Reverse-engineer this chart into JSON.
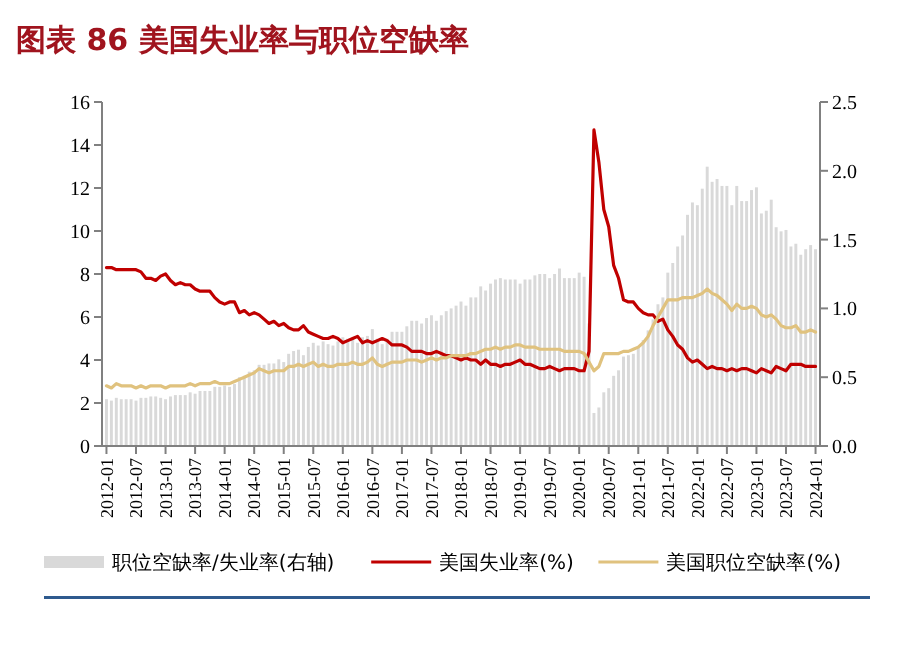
{
  "chart_data": {
    "type": "bar",
    "title": "图表 86  美国失业率与职位空缺率",
    "categories": [
      "2012-01",
      null,
      null,
      null,
      null,
      null,
      "2012-07",
      null,
      null,
      null,
      null,
      null,
      "2013-01",
      null,
      null,
      null,
      null,
      null,
      "2013-07",
      null,
      null,
      null,
      null,
      null,
      "2014-01",
      null,
      null,
      null,
      null,
      null,
      "2014-07",
      null,
      null,
      null,
      null,
      null,
      "2015-01",
      null,
      null,
      null,
      null,
      null,
      "2015-07",
      null,
      null,
      null,
      null,
      null,
      "2016-01",
      null,
      null,
      null,
      null,
      null,
      "2016-07",
      null,
      null,
      null,
      null,
      null,
      "2017-01",
      null,
      null,
      null,
      null,
      null,
      "2017-07",
      null,
      null,
      null,
      null,
      null,
      "2018-01",
      null,
      null,
      null,
      null,
      null,
      "2018-07",
      null,
      null,
      null,
      null,
      null,
      "2019-01",
      null,
      null,
      null,
      null,
      null,
      "2019-07",
      null,
      null,
      null,
      null,
      null,
      "2020-01",
      null,
      null,
      null,
      null,
      null,
      "2020-07",
      null,
      null,
      null,
      null,
      null,
      "2021-01",
      null,
      null,
      null,
      null,
      null,
      "2021-07",
      null,
      null,
      null,
      null,
      null,
      "2022-01",
      null,
      null,
      null,
      null,
      null,
      "2022-07",
      null,
      null,
      null,
      null,
      null,
      "2023-01",
      null,
      null,
      null,
      null,
      null,
      "2023-07",
      null,
      null,
      null,
      null,
      null,
      "2024-01"
    ],
    "series": [
      {
        "name": "职位空缺率/失业率(右轴)",
        "axis": "y2",
        "color": "#d9d9d9",
        "values": [
          0.34,
          0.33,
          0.35,
          0.34,
          0.34,
          0.34,
          0.33,
          0.35,
          0.35,
          0.36,
          0.36,
          0.35,
          0.34,
          0.36,
          0.37,
          0.37,
          0.37,
          0.39,
          0.38,
          0.4,
          0.4,
          0.4,
          0.43,
          0.43,
          0.44,
          0.43,
          0.45,
          0.5,
          0.51,
          0.54,
          0.55,
          0.59,
          0.59,
          0.6,
          0.6,
          0.63,
          0.61,
          0.67,
          0.69,
          0.7,
          0.66,
          0.72,
          0.75,
          0.73,
          0.76,
          0.74,
          0.73,
          0.76,
          0.79,
          0.78,
          0.78,
          0.75,
          0.79,
          0.8,
          0.85,
          0.78,
          0.74,
          0.78,
          0.83,
          0.83,
          0.83,
          0.87,
          0.91,
          0.91,
          0.89,
          0.93,
          0.95,
          0.91,
          0.95,
          0.98,
          1.0,
          1.02,
          1.05,
          1.02,
          1.08,
          1.08,
          1.16,
          1.13,
          1.18,
          1.21,
          1.22,
          1.21,
          1.21,
          1.21,
          1.18,
          1.21,
          1.21,
          1.24,
          1.25,
          1.25,
          1.22,
          1.25,
          1.29,
          1.22,
          1.22,
          1.22,
          1.26,
          1.23,
          0.89,
          0.24,
          0.28,
          0.39,
          0.42,
          0.51,
          0.55,
          0.65,
          0.66,
          0.67,
          0.72,
          0.77,
          0.84,
          0.92,
          1.03,
          1.08,
          1.26,
          1.33,
          1.45,
          1.53,
          1.68,
          1.77,
          1.75,
          1.87,
          2.03,
          1.92,
          1.94,
          1.89,
          1.89,
          1.75,
          1.89,
          1.78,
          1.78,
          1.86,
          1.88,
          1.69,
          1.71,
          1.79,
          1.59,
          1.56,
          1.57,
          1.45,
          1.47,
          1.39,
          1.43,
          1.46,
          1.43
        ]
      },
      {
        "name": "美国失业率(%)",
        "type": "line",
        "color": "#c00000",
        "values": [
          8.3,
          8.3,
          8.2,
          8.2,
          8.2,
          8.2,
          8.2,
          8.1,
          7.8,
          7.8,
          7.7,
          7.9,
          8.0,
          7.7,
          7.5,
          7.6,
          7.5,
          7.5,
          7.3,
          7.2,
          7.2,
          7.2,
          6.9,
          6.7,
          6.6,
          6.7,
          6.7,
          6.2,
          6.3,
          6.1,
          6.2,
          6.1,
          5.9,
          5.7,
          5.8,
          5.6,
          5.7,
          5.5,
          5.4,
          5.4,
          5.6,
          5.3,
          5.2,
          5.1,
          5.0,
          5.0,
          5.1,
          5.0,
          4.8,
          4.9,
          5.0,
          5.1,
          4.8,
          4.9,
          4.8,
          4.9,
          5.0,
          4.9,
          4.7,
          4.7,
          4.7,
          4.6,
          4.4,
          4.4,
          4.4,
          4.3,
          4.3,
          4.4,
          4.3,
          4.2,
          4.2,
          4.1,
          4.0,
          4.1,
          4.0,
          4.0,
          3.8,
          4.0,
          3.8,
          3.8,
          3.7,
          3.8,
          3.8,
          3.9,
          4.0,
          3.8,
          3.8,
          3.7,
          3.6,
          3.6,
          3.7,
          3.6,
          3.5,
          3.6,
          3.6,
          3.6,
          3.5,
          3.5,
          4.4,
          14.7,
          13.2,
          11.0,
          10.2,
          8.4,
          7.8,
          6.8,
          6.7,
          6.7,
          6.4,
          6.2,
          6.1,
          6.1,
          5.8,
          5.9,
          5.4,
          5.1,
          4.7,
          4.5,
          4.1,
          3.9,
          4.0,
          3.8,
          3.6,
          3.7,
          3.6,
          3.6,
          3.5,
          3.6,
          3.5,
          3.6,
          3.6,
          3.5,
          3.4,
          3.6,
          3.5,
          3.4,
          3.7,
          3.6,
          3.5,
          3.8,
          3.8,
          3.8,
          3.7,
          3.7,
          3.7
        ]
      },
      {
        "name": "美国职位空缺率(%)",
        "type": "line",
        "color": "#e0c27e",
        "values": [
          2.8,
          2.7,
          2.9,
          2.8,
          2.8,
          2.8,
          2.7,
          2.8,
          2.7,
          2.8,
          2.8,
          2.8,
          2.7,
          2.8,
          2.8,
          2.8,
          2.8,
          2.9,
          2.8,
          2.9,
          2.9,
          2.9,
          3.0,
          2.9,
          2.9,
          2.9,
          3.0,
          3.1,
          3.2,
          3.3,
          3.4,
          3.6,
          3.5,
          3.4,
          3.5,
          3.5,
          3.5,
          3.7,
          3.7,
          3.8,
          3.7,
          3.8,
          3.9,
          3.7,
          3.8,
          3.7,
          3.7,
          3.8,
          3.8,
          3.8,
          3.9,
          3.8,
          3.8,
          3.9,
          4.1,
          3.8,
          3.7,
          3.8,
          3.9,
          3.9,
          3.9,
          4.0,
          4.0,
          4.0,
          3.9,
          4.0,
          4.1,
          4.0,
          4.1,
          4.1,
          4.2,
          4.2,
          4.2,
          4.2,
          4.3,
          4.3,
          4.4,
          4.5,
          4.5,
          4.6,
          4.5,
          4.6,
          4.6,
          4.7,
          4.7,
          4.6,
          4.6,
          4.6,
          4.5,
          4.5,
          4.5,
          4.5,
          4.5,
          4.4,
          4.4,
          4.4,
          4.4,
          4.3,
          3.9,
          3.5,
          3.7,
          4.3,
          4.3,
          4.3,
          4.3,
          4.4,
          4.4,
          4.5,
          4.6,
          4.8,
          5.1,
          5.6,
          6.0,
          6.4,
          6.8,
          6.8,
          6.8,
          6.9,
          6.9,
          6.9,
          7.0,
          7.1,
          7.3,
          7.1,
          7.0,
          6.8,
          6.6,
          6.3,
          6.6,
          6.4,
          6.4,
          6.5,
          6.4,
          6.1,
          6.0,
          6.1,
          5.9,
          5.6,
          5.5,
          5.5,
          5.6,
          5.3,
          5.3,
          5.4,
          5.3
        ]
      }
    ],
    "ylim": [
      0,
      16
    ],
    "yticks": [
      0,
      2,
      4,
      6,
      8,
      10,
      12,
      14,
      16
    ],
    "y2lim": [
      0,
      2.5
    ],
    "y2ticks": [
      {
        "value": 0,
        "label": "0.0"
      },
      {
        "value": 0.5,
        "label": "0.5"
      },
      {
        "value": 1,
        "label": "1.0"
      },
      {
        "value": 1.5,
        "label": "1.5"
      },
      {
        "value": 2,
        "label": "2.0"
      },
      {
        "value": 2.5,
        "label": "2.5"
      }
    ],
    "grid": false,
    "legend": "bottom"
  }
}
